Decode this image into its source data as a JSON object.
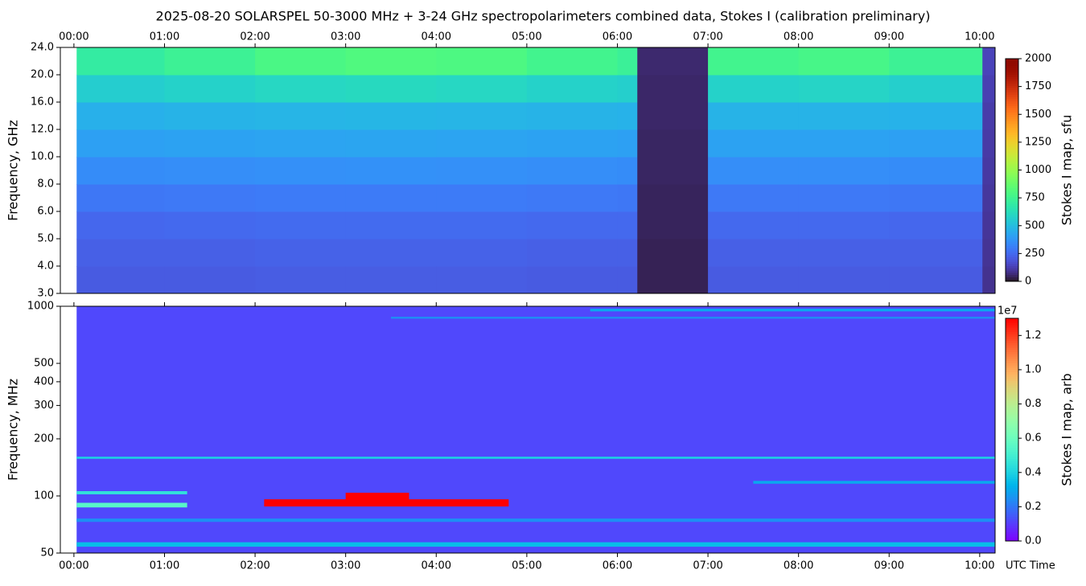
{
  "chart_data": [
    {
      "type": "heatmap",
      "title": "2025-08-20  SOLARSPEL  50-3000 MHz  +  3-24 GHz  spectropolarimeters combined data,  Stokes I  (calibration preliminary)",
      "ylabel": "Frequency, GHz",
      "colorbar_label": "Stokes I map, sfu",
      "colormap": "turbo",
      "xlim": [
        -0.15,
        10.17
      ],
      "xticks": [
        {
          "value": 0,
          "label": "00:00"
        },
        {
          "value": 1,
          "label": "01:00"
        },
        {
          "value": 2,
          "label": "02:00"
        },
        {
          "value": 3,
          "label": "03:00"
        },
        {
          "value": 4,
          "label": "04:00"
        },
        {
          "value": 5,
          "label": "05:00"
        },
        {
          "value": 6,
          "label": "06:00"
        },
        {
          "value": 7,
          "label": "07:00"
        },
        {
          "value": 8,
          "label": "08:00"
        },
        {
          "value": 9,
          "label": "09:00"
        },
        {
          "value": 10,
          "label": "10:00"
        }
      ],
      "ylim": [
        3,
        24
      ],
      "yticks": [
        {
          "value": 3,
          "label": "3.0"
        },
        {
          "value": 4,
          "label": "4.0"
        },
        {
          "value": 5,
          "label": "5.0"
        },
        {
          "value": 6,
          "label": "6.0"
        },
        {
          "value": 8,
          "label": "8.0"
        },
        {
          "value": 10,
          "label": "10.0"
        },
        {
          "value": 12,
          "label": "12.0"
        },
        {
          "value": 16,
          "label": "16.0"
        },
        {
          "value": 20,
          "label": "20.0"
        },
        {
          "value": 24,
          "label": "24.0"
        }
      ],
      "clim": [
        0,
        2000
      ],
      "cticks": [
        0,
        250,
        500,
        750,
        1000,
        1250,
        1500,
        1750,
        2000
      ],
      "x_edges": [
        0.03,
        1,
        2,
        3,
        4,
        5,
        6.0,
        6.22,
        7,
        8,
        9,
        10.03,
        10.17
      ],
      "y_edges": [
        3,
        4,
        5,
        6,
        8,
        10,
        12,
        16,
        20,
        24
      ],
      "values": [
        [
          210,
          210,
          215,
          215,
          215,
          210,
          210,
          40,
          210,
          210,
          210,
          90
        ],
        [
          225,
          225,
          230,
          230,
          230,
          225,
          225,
          40,
          225,
          225,
          225,
          95
        ],
        [
          245,
          250,
          255,
          255,
          255,
          250,
          250,
          45,
          250,
          250,
          245,
          100
        ],
        [
          290,
          295,
          300,
          300,
          300,
          295,
          290,
          45,
          295,
          295,
          290,
          105
        ],
        [
          350,
          355,
          360,
          365,
          360,
          355,
          350,
          50,
          355,
          355,
          350,
          110
        ],
        [
          410,
          415,
          420,
          425,
          420,
          415,
          410,
          50,
          415,
          415,
          410,
          115
        ],
        [
          460,
          470,
          475,
          480,
          475,
          470,
          465,
          55,
          470,
          470,
          465,
          120
        ],
        [
          560,
          580,
          600,
          610,
          600,
          580,
          570,
          55,
          580,
          590,
          570,
          130
        ],
        [
          700,
          740,
          790,
          810,
          800,
          760,
          730,
          60,
          760,
          780,
          740,
          140
        ]
      ]
    },
    {
      "type": "cells",
      "ylabel": "Frequency, MHz",
      "xlabel": "UTC Time",
      "colorbar_label": "Stokes I map, arb",
      "colorbar_offset": "1e7",
      "colormap": "rainbow",
      "log_y": true,
      "xlim": [
        -0.15,
        10.17
      ],
      "xticks": [
        {
          "value": 0,
          "label": "00:00"
        },
        {
          "value": 1,
          "label": "01:00"
        },
        {
          "value": 2,
          "label": "02:00"
        },
        {
          "value": 3,
          "label": "03:00"
        },
        {
          "value": 4,
          "label": "04:00"
        },
        {
          "value": 5,
          "label": "05:00"
        },
        {
          "value": 6,
          "label": "06:00"
        },
        {
          "value": 7,
          "label": "07:00"
        },
        {
          "value": 8,
          "label": "08:00"
        },
        {
          "value": 9,
          "label": "09:00"
        },
        {
          "value": 10,
          "label": "10:00"
        }
      ],
      "ylim": [
        50,
        1000
      ],
      "yticks": [
        50,
        100,
        200,
        300,
        400,
        500,
        1000
      ],
      "clim": [
        0,
        1.3
      ],
      "cticks": [
        {
          "value": 0,
          "label": "0.0"
        },
        0.2,
        0.4,
        0.6,
        0.8,
        {
          "value": 1,
          "label": "1.0"
        },
        1.2
      ],
      "cells": [
        {
          "t": [
            0.03,
            10.17
          ],
          "f": [
            50,
            1000
          ],
          "v": 0.12
        },
        {
          "t": [
            0.03,
            10.17
          ],
          "f": [
            54,
            57
          ],
          "v": 0.35
        },
        {
          "t": [
            0.03,
            10.17
          ],
          "f": [
            73,
            76
          ],
          "v": 0.25
        },
        {
          "t": [
            0.03,
            1.25
          ],
          "f": [
            87,
            92
          ],
          "v": 0.55
        },
        {
          "t": [
            0.03,
            1.25
          ],
          "f": [
            102,
            106
          ],
          "v": 0.45
        },
        {
          "t": [
            2.1,
            4.8
          ],
          "f": [
            88,
            96
          ],
          "v": 1.3
        },
        {
          "t": [
            3.0,
            3.7
          ],
          "f": [
            92,
            104
          ],
          "v": 1.3
        },
        {
          "t": [
            0.03,
            10.17
          ],
          "f": [
            157,
            161
          ],
          "v": 0.4
        },
        {
          "t": [
            7.5,
            10.17
          ],
          "f": [
            116,
            120
          ],
          "v": 0.3
        },
        {
          "t": [
            3.5,
            10.17
          ],
          "f": [
            860,
            880
          ],
          "v": 0.25
        },
        {
          "t": [
            5.7,
            10.17
          ],
          "f": [
            940,
            970
          ],
          "v": 0.3
        }
      ]
    }
  ]
}
